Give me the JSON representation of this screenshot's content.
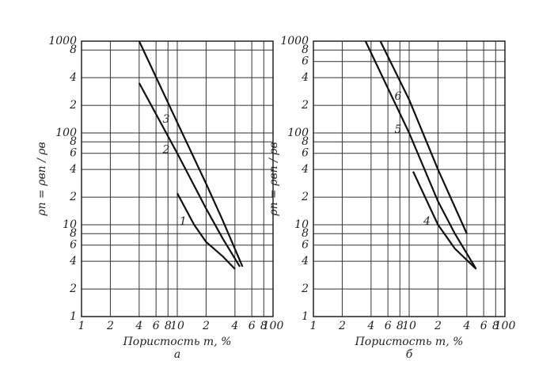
{
  "chart_data": [
    {
      "type": "line",
      "xlog": true,
      "ylog": true,
      "grid": true,
      "color": "#111",
      "xlim": [
        1,
        100
      ],
      "ylim": [
        1,
        1000
      ],
      "xticks": [
        1,
        2,
        4,
        6,
        8,
        10,
        {
          "value": 20,
          "label": "2"
        },
        {
          "value": 40,
          "label": "4"
        },
        {
          "value": 60,
          "label": "6"
        },
        {
          "value": 80,
          "label": "8"
        },
        100
      ],
      "yticks": [
        1,
        2,
        4,
        6,
        8,
        10,
        {
          "value": 20,
          "label": "2"
        },
        {
          "value": 40,
          "label": "4"
        },
        {
          "value": 60,
          "label": "6"
        },
        {
          "value": 80,
          "label": "8"
        },
        100,
        {
          "value": 200,
          "label": "2"
        },
        {
          "value": 400,
          "label": "4"
        },
        {
          "value": 800,
          "label": "8"
        },
        1000
      ],
      "x_label": "Пористость m, %",
      "caption": "а",
      "y_label": "ρп = ρвп / ρв",
      "series": [
        {
          "name": "1",
          "color": "#111",
          "x": [
            10,
            15,
            20,
            30,
            40
          ],
          "values": [
            22,
            10,
            6.5,
            4.5,
            3.3
          ]
        },
        {
          "name": "2",
          "color": "#111",
          "x": [
            4,
            10,
            20,
            30,
            45
          ],
          "values": [
            350,
            60,
            15,
            7,
            3.5
          ]
        },
        {
          "name": "3",
          "color": "#111",
          "x": [
            4,
            10,
            20,
            30,
            48
          ],
          "values": [
            1000,
            130,
            28,
            11,
            3.5
          ]
        }
      ]
    },
    {
      "type": "line",
      "xlog": true,
      "ylog": true,
      "grid": true,
      "color": "#111",
      "xlim": [
        1,
        100
      ],
      "ylim": [
        1,
        1000
      ],
      "xticks": [
        1,
        2,
        4,
        6,
        8,
        10,
        {
          "value": 20,
          "label": "2"
        },
        {
          "value": 40,
          "label": "4"
        },
        {
          "value": 60,
          "label": "6"
        },
        {
          "value": 80,
          "label": "8"
        },
        100
      ],
      "yticks": [
        1,
        2,
        4,
        6,
        8,
        10,
        {
          "value": 20,
          "label": "2"
        },
        {
          "value": 40,
          "label": "4"
        },
        {
          "value": 60,
          "label": "6"
        },
        {
          "value": 80,
          "label": "8"
        },
        100,
        {
          "value": 200,
          "label": "2"
        },
        {
          "value": 400,
          "label": "4"
        },
        {
          "value": 600,
          "label": "6"
        },
        {
          "value": 800,
          "label": "8"
        },
        1000
      ],
      "x_label": "Пористость m, %",
      "caption": "б",
      "y_label": "ρп = ρвп / ρв",
      "series": [
        {
          "name": "4",
          "color": "#111",
          "x": [
            11,
            20,
            30,
            50
          ],
          "values": [
            38,
            10,
            5.5,
            3.3
          ]
        },
        {
          "name": "5",
          "color": "#111",
          "x": [
            3.5,
            10,
            20,
            30,
            50
          ],
          "values": [
            1000,
            100,
            18,
            8,
            3.3
          ]
        },
        {
          "name": "6",
          "color": "#111",
          "x": [
            5,
            10,
            20,
            40
          ],
          "values": [
            1000,
            230,
            40,
            8
          ]
        }
      ]
    }
  ]
}
